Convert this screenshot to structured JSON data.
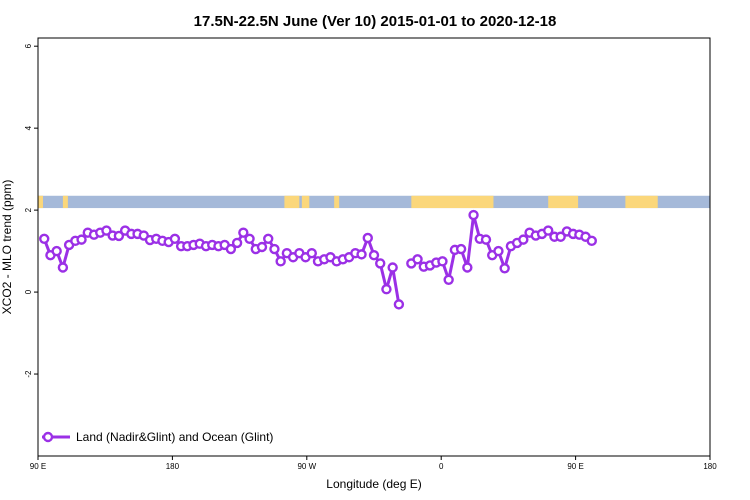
{
  "chart_data": {
    "type": "line",
    "title": "17.5N-22.5N June (Ver 10)   2015-01-01 to 2020-12-18",
    "xlabel": "Longitude (deg E)",
    "ylabel": "XCO2 - MLO trend (ppm)",
    "xlim": [
      -90,
      180
    ],
    "ylim": [
      -4,
      6.2
    ],
    "x_ticks": [
      {
        "value": -90,
        "label": "90 E"
      },
      {
        "value": -36,
        "label": "180"
      },
      {
        "value": 18,
        "label": "90 W"
      },
      {
        "value": 72,
        "label": "0"
      },
      {
        "value": 126,
        "label": "90 E"
      },
      {
        "value": 180,
        "label": "180"
      }
    ],
    "y_ticks": [
      {
        "value": -2,
        "label": "-2"
      },
      {
        "value": 0,
        "label": "0"
      },
      {
        "value": 2,
        "label": "2"
      },
      {
        "value": 4,
        "label": "4"
      },
      {
        "value": 6,
        "label": "6"
      }
    ],
    "grid": false,
    "legend": {
      "position": "bottom-left",
      "entries": [
        "Land (Nadir&Glint) and Ocean (Glint)"
      ]
    },
    "land_ocean_band": {
      "y_range": [
        2.05,
        2.35
      ],
      "ocean_color": "#a5b9d9",
      "land_color": "#fbd77b",
      "land_segments": [
        [
          -90,
          -88
        ],
        [
          -80,
          -78
        ],
        [
          9,
          15
        ],
        [
          16,
          19
        ],
        [
          29,
          31
        ],
        [
          60,
          93
        ],
        [
          115,
          127
        ],
        [
          146,
          159
        ]
      ]
    },
    "series": [
      {
        "color": "#9b30e6",
        "x": [
          -87.5,
          -85,
          -82.5,
          -80,
          -77.5,
          -75,
          -72.5,
          -70,
          -67.5,
          -65,
          -62.5,
          -60,
          -57.5,
          -55,
          -52.5,
          -50,
          -47.5,
          -45,
          -42.5,
          -40,
          -37.5,
          -35,
          -32.5,
          -30,
          -27.5,
          -25,
          -22.5,
          -20,
          -17.5,
          -15,
          -12.5,
          -10,
          -7.5,
          -5,
          -2.5,
          0,
          2.5,
          5,
          7.5,
          10,
          12.5,
          15,
          17.5,
          20,
          22.5,
          25,
          27.5,
          30,
          32.5,
          35,
          37.5,
          40,
          42.5,
          45,
          47.5,
          50,
          52.5,
          55,
          57.5,
          60,
          62.5,
          65,
          67.5,
          70,
          72.5,
          75,
          77.5,
          80,
          82.5,
          85,
          87.5
        ],
        "y": [
          1.3,
          0.9,
          1.0,
          0.6,
          1.15,
          1.25,
          1.28,
          1.45,
          1.4,
          1.45,
          1.5,
          1.38,
          1.37,
          1.5,
          1.42,
          1.42,
          1.38,
          1.27,
          1.3,
          1.25,
          1.22,
          1.3,
          1.12,
          1.12,
          1.15,
          1.18,
          1.12,
          1.15,
          1.12,
          1.15,
          1.05,
          1.2,
          1.45,
          1.3,
          1.05,
          1.1,
          1.3,
          1.05,
          0.75,
          0.95,
          0.85,
          0.95,
          0.85,
          0.95,
          0.75,
          0.8,
          0.85,
          0.75,
          0.8,
          0.85,
          0.95,
          0.92,
          1.32,
          0.9,
          0.7,
          0.07,
          0.6,
          -0.3,
          null,
          0.7,
          0.8,
          0.62,
          0.65,
          0.72,
          0.75,
          0.3,
          1.03,
          1.05,
          0.6,
          1.88,
          1.3
        ]
      },
      {
        "color": "#9b30e6",
        "x": [
          90,
          92.5,
          95,
          97.5,
          100,
          102.5,
          105,
          107.5,
          110,
          112.5,
          115,
          117.5,
          120,
          122.5,
          125,
          127.5,
          130,
          132.5,
          135,
          137.5,
          140,
          142.5,
          145
        ],
        "y": [
          1.28,
          0.9,
          1.0,
          0.58,
          1.12,
          1.2,
          1.28,
          1.45,
          1.38,
          1.42,
          1.5,
          1.35,
          1.35,
          1.48,
          1.42,
          1.4,
          1.35,
          1.25,
          null,
          null,
          null,
          null,
          null
        ]
      }
    ]
  }
}
